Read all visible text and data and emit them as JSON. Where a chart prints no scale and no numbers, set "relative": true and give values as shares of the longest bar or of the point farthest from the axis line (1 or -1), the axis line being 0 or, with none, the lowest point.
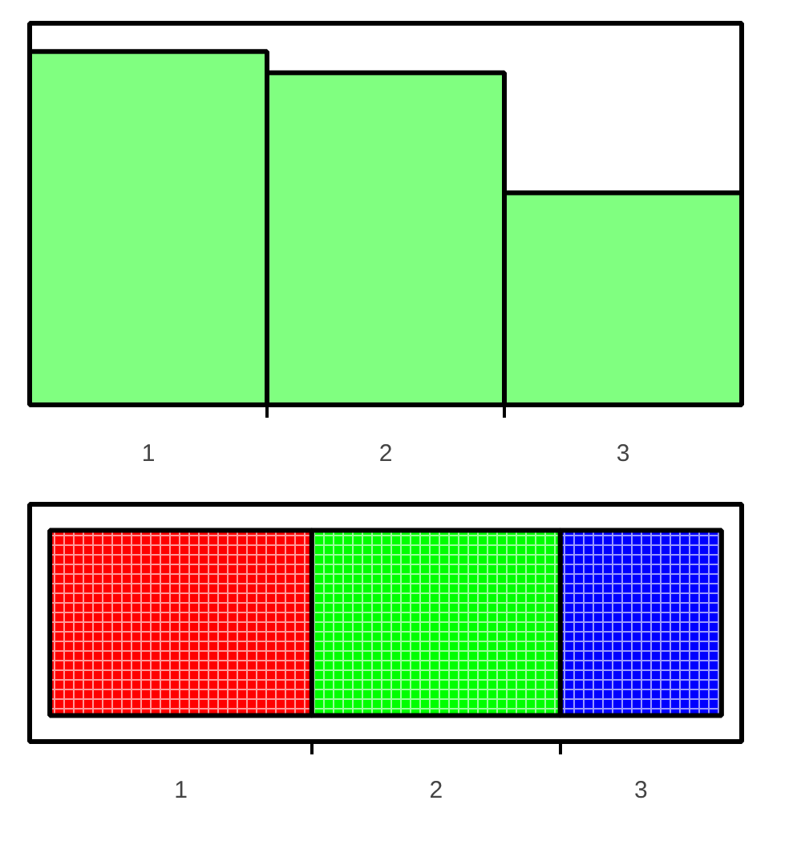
{
  "chart_data": [
    {
      "type": "bar",
      "categories": [
        "1",
        "2",
        "3"
      ],
      "values": [
        1,
        0.94,
        0.6
      ],
      "color": "#80ff80",
      "relative": true
    },
    {
      "type": "bar",
      "orientation": "horizontal",
      "stacked": true,
      "relative": true,
      "categories": [
        null
      ],
      "series": [
        {
          "name": "1",
          "color": "#ff0000",
          "values": [
            0.39
          ]
        },
        {
          "name": "2",
          "color": "#00ff00",
          "values": [
            0.37
          ]
        },
        {
          "name": "3",
          "color": "#0000ff",
          "values": [
            0.24
          ]
        }
      ]
    }
  ]
}
